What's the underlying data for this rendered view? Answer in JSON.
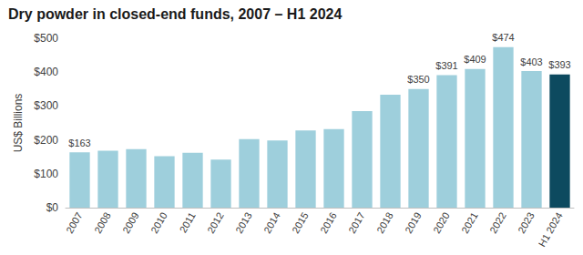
{
  "chart_data": {
    "type": "bar",
    "title": "Dry powder in closed-end funds, 2007 – H1 2024",
    "y_label": "US$ Billions",
    "categories": [
      "2007",
      "2008",
      "2009",
      "2010",
      "2011",
      "2012",
      "2013",
      "2014",
      "2015",
      "2016",
      "2017",
      "2018",
      "2019",
      "2020",
      "2021",
      "2022",
      "2023",
      "H1 2024"
    ],
    "values": [
      163,
      168,
      173,
      152,
      162,
      142,
      202,
      198,
      228,
      232,
      285,
      333,
      350,
      391,
      409,
      474,
      403,
      393
    ],
    "value_labels": [
      "$163",
      null,
      null,
      null,
      null,
      null,
      null,
      null,
      null,
      null,
      null,
      null,
      "$350",
      "$391",
      "$409",
      "$474",
      "$403",
      "$393"
    ],
    "colors": [
      "#9ecfdc",
      "#9ecfdc",
      "#9ecfdc",
      "#9ecfdc",
      "#9ecfdc",
      "#9ecfdc",
      "#9ecfdc",
      "#9ecfdc",
      "#9ecfdc",
      "#9ecfdc",
      "#9ecfdc",
      "#9ecfdc",
      "#9ecfdc",
      "#9ecfdc",
      "#9ecfdc",
      "#9ecfdc",
      "#9ecfdc",
      "#0d4a5f"
    ],
    "ylim": [
      0,
      500
    ],
    "yticks": [
      {
        "value": 0,
        "label": "$0"
      },
      {
        "value": 100,
        "label": "$100"
      },
      {
        "value": 200,
        "label": "$200"
      },
      {
        "value": 300,
        "label": "$300"
      },
      {
        "value": 400,
        "label": "$400"
      },
      {
        "value": 500,
        "label": "$500"
      }
    ],
    "grid": false,
    "data_labels": true
  }
}
